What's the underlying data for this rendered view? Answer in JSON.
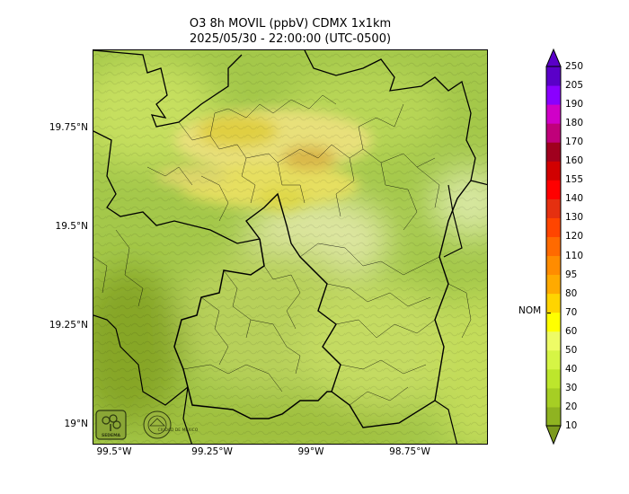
{
  "title": {
    "line1": "O3 8h MOVIL (ppbV) CDMX 1x1km",
    "line2": "2025/05/30 - 22:00:00 (UTC-0500)"
  },
  "map": {
    "lat_labels": [
      "19.75°N",
      "19.5°N",
      "19.25°N",
      "19°N"
    ],
    "lon_labels": [
      "99.5°W",
      "99.25°W",
      "99°W",
      "98.75°W"
    ],
    "background_color": "#a4c84a"
  },
  "colorbar": {
    "levels": [
      "10",
      "20",
      "30",
      "40",
      "50",
      "60",
      "70",
      "80",
      "95",
      "110",
      "120",
      "130",
      "140",
      "155",
      "160",
      "170",
      "180",
      "190",
      "205",
      "250"
    ],
    "colors": [
      "#7c9a1e",
      "#8fb321",
      "#a6ce24",
      "#bde62c",
      "#d6f545",
      "#eefb66",
      "#ffff00",
      "#ffd400",
      "#ffaa00",
      "#ff8c00",
      "#ff6a00",
      "#ff4500",
      "#e53010",
      "#ff0000",
      "#d10000",
      "#a0001e",
      "#c0007a",
      "#d000c8",
      "#8a00ff",
      "#5a00c8"
    ],
    "nom_label": "NOM",
    "nom_value": 70
  },
  "logos": {
    "sedema_text": "SEDEMA",
    "cdmx_text": "CIUDAD DE MÉXICO"
  }
}
